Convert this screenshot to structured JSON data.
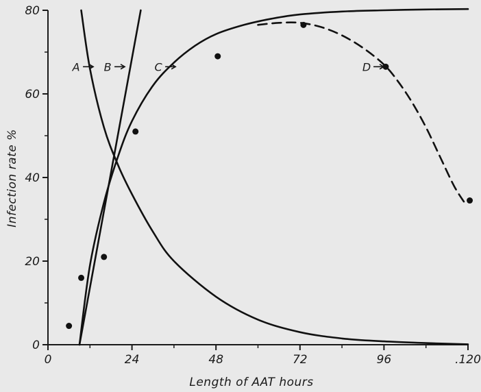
{
  "chart_data": {
    "type": "line",
    "title": "",
    "xlabel": "Length of AAT hours",
    "ylabel": "Infection rate %",
    "xlim": [
      0,
      120
    ],
    "ylim": [
      0,
      80
    ],
    "x_ticks": [
      0,
      24,
      48,
      72,
      96,
      120
    ],
    "x_tick_labels": [
      "0",
      "24",
      "48",
      "72",
      "96",
      ".120"
    ],
    "y_ticks": [
      0,
      20,
      40,
      60,
      80
    ],
    "y_tick_labels": [
      "0",
      "20",
      "40",
      "60",
      "80"
    ],
    "grid": false,
    "series": [
      {
        "name": "A",
        "style": "solid",
        "x": [
          9.5,
          12,
          16,
          20,
          24,
          30,
          36,
          48,
          60,
          72,
          84,
          96,
          108,
          120
        ],
        "y": [
          80,
          66,
          52,
          43,
          36,
          27,
          20,
          11.5,
          6,
          3,
          1.5,
          0.8,
          0.4,
          0.1
        ]
      },
      {
        "name": "B",
        "style": "solid",
        "x": [
          9,
          26.5
        ],
        "y": [
          0,
          80
        ]
      },
      {
        "name": "C",
        "style": "solid",
        "x": [
          9,
          12,
          16,
          20,
          24,
          30,
          36,
          42,
          48,
          56,
          64,
          72,
          84,
          96,
          108,
          120
        ],
        "y": [
          0,
          19,
          34,
          45,
          53.5,
          62,
          67.5,
          71.5,
          74.3,
          76.5,
          78,
          79,
          79.7,
          80,
          80.2,
          80.3
        ]
      },
      {
        "name": "D",
        "style": "dashed",
        "x": [
          60,
          66,
          72,
          78,
          84,
          90,
          96,
          100,
          104,
          108,
          112,
          116,
          119
        ],
        "y": [
          76.5,
          77,
          77,
          76,
          74,
          71,
          67,
          63,
          58,
          52,
          45,
          38,
          34
        ]
      }
    ],
    "points": [
      {
        "x": 6,
        "y": 4.5
      },
      {
        "x": 9.5,
        "y": 16
      },
      {
        "x": 16,
        "y": 21
      },
      {
        "x": 25,
        "y": 51
      },
      {
        "x": 48.5,
        "y": 69
      },
      {
        "x": 73,
        "y": 76.5
      },
      {
        "x": 96.5,
        "y": 66.5
      },
      {
        "x": 120.5,
        "y": 34.5
      }
    ],
    "annotations": [
      {
        "text": "A",
        "x": 10,
        "y": 66.5
      },
      {
        "text": "B",
        "x": 19,
        "y": 66.5
      },
      {
        "text": "C",
        "x": 33.5,
        "y": 66.5
      },
      {
        "text": "D",
        "x": 93,
        "y": 66.5
      }
    ]
  }
}
